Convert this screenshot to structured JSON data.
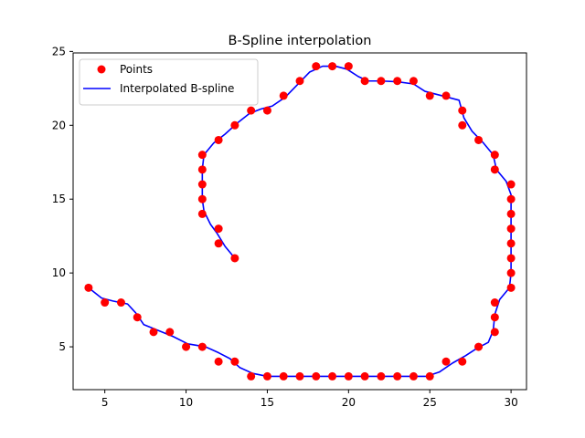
{
  "chart_data": {
    "type": "scatter",
    "title": "B-Spline interpolation",
    "xlabel": "",
    "ylabel": "",
    "xlim": [
      3.05,
      30.95
    ],
    "ylim": [
      2.1,
      24.9
    ],
    "x_ticks": [
      5,
      10,
      15,
      20,
      25,
      30
    ],
    "y_ticks": [
      5,
      10,
      15,
      20,
      25
    ],
    "grid": false,
    "legend_position": "top-left",
    "series": [
      {
        "name": "Points",
        "kind": "scatter",
        "color": "#ff0000",
        "points": [
          [
            13,
            11
          ],
          [
            12,
            12
          ],
          [
            12,
            13
          ],
          [
            11,
            14
          ],
          [
            11,
            15
          ],
          [
            11,
            16
          ],
          [
            11,
            17
          ],
          [
            11,
            18
          ],
          [
            12,
            19
          ],
          [
            13,
            20
          ],
          [
            14,
            21
          ],
          [
            15,
            21
          ],
          [
            16,
            22
          ],
          [
            17,
            23
          ],
          [
            18,
            24
          ],
          [
            19,
            24
          ],
          [
            20,
            24
          ],
          [
            21,
            23
          ],
          [
            22,
            23
          ],
          [
            23,
            23
          ],
          [
            24,
            23
          ],
          [
            25,
            22
          ],
          [
            26,
            22
          ],
          [
            27,
            21
          ],
          [
            27,
            20
          ],
          [
            28,
            19
          ],
          [
            29,
            18
          ],
          [
            29,
            17
          ],
          [
            30,
            16
          ],
          [
            30,
            15
          ],
          [
            30,
            14
          ],
          [
            30,
            13
          ],
          [
            30,
            12
          ],
          [
            30,
            11
          ],
          [
            30,
            10
          ],
          [
            30,
            9
          ],
          [
            29,
            8
          ],
          [
            29,
            7
          ],
          [
            29,
            6
          ],
          [
            28,
            5
          ],
          [
            27,
            4
          ],
          [
            26,
            4
          ],
          [
            25,
            3
          ],
          [
            24,
            3
          ],
          [
            23,
            3
          ],
          [
            22,
            3
          ],
          [
            21,
            3
          ],
          [
            20,
            3
          ],
          [
            19,
            3
          ],
          [
            18,
            3
          ],
          [
            17,
            3
          ],
          [
            16,
            3
          ],
          [
            15,
            3
          ],
          [
            14,
            3
          ],
          [
            13,
            4
          ],
          [
            12,
            4
          ],
          [
            11,
            5
          ],
          [
            10,
            5
          ],
          [
            9,
            6
          ],
          [
            8,
            6
          ],
          [
            7,
            7
          ],
          [
            6,
            8
          ],
          [
            5,
            8
          ],
          [
            4,
            9
          ]
        ]
      },
      {
        "name": "Interpolated B-spline",
        "kind": "line",
        "color": "#0000ff",
        "points": [
          [
            13,
            11
          ],
          [
            12.4,
            11.8
          ],
          [
            11.9,
            12.7
          ],
          [
            11.5,
            13.3
          ],
          [
            11.1,
            14.2
          ],
          [
            11,
            15
          ],
          [
            11,
            16
          ],
          [
            11,
            17
          ],
          [
            11.1,
            18
          ],
          [
            11.7,
            18.8
          ],
          [
            12.4,
            19.4
          ],
          [
            13.1,
            20.1
          ],
          [
            13.9,
            20.8
          ],
          [
            14.6,
            21.1
          ],
          [
            15.3,
            21.3
          ],
          [
            16.1,
            21.9
          ],
          [
            16.9,
            22.8
          ],
          [
            17.6,
            23.6
          ],
          [
            18.4,
            24
          ],
          [
            19.2,
            24
          ],
          [
            19.9,
            23.8
          ],
          [
            20.6,
            23.3
          ],
          [
            21.2,
            23
          ],
          [
            22,
            23
          ],
          [
            23,
            22.95
          ],
          [
            24,
            22.8
          ],
          [
            24.7,
            22.3
          ],
          [
            25.4,
            22.1
          ],
          [
            26.1,
            21.9
          ],
          [
            26.8,
            21.7
          ],
          [
            27.1,
            20.5
          ],
          [
            27.6,
            19.6
          ],
          [
            28.3,
            18.8
          ],
          [
            28.9,
            18
          ],
          [
            29.1,
            17
          ],
          [
            29.7,
            16.2
          ],
          [
            30,
            15.3
          ],
          [
            30,
            14
          ],
          [
            30,
            13
          ],
          [
            30,
            12
          ],
          [
            30,
            11
          ],
          [
            30,
            10
          ],
          [
            29.9,
            9
          ],
          [
            29.3,
            8.2
          ],
          [
            29,
            7.2
          ],
          [
            28.9,
            6.1
          ],
          [
            28.6,
            5.3
          ],
          [
            27.9,
            4.9
          ],
          [
            27.2,
            4.4
          ],
          [
            26.4,
            3.9
          ],
          [
            25.6,
            3.3
          ],
          [
            24.8,
            3
          ],
          [
            24,
            3
          ],
          [
            23,
            3
          ],
          [
            22,
            3
          ],
          [
            21,
            3
          ],
          [
            20,
            3
          ],
          [
            19,
            3
          ],
          [
            18,
            3
          ],
          [
            17,
            3
          ],
          [
            16,
            3
          ],
          [
            15,
            3
          ],
          [
            14.1,
            3.2
          ],
          [
            13.3,
            3.6
          ],
          [
            12.7,
            4.2
          ],
          [
            12,
            4.6
          ],
          [
            11.2,
            5
          ],
          [
            10.1,
            5.2
          ],
          [
            9.2,
            5.7
          ],
          [
            8.3,
            6.1
          ],
          [
            7.4,
            6.5
          ],
          [
            6.9,
            7.3
          ],
          [
            6.4,
            7.9
          ],
          [
            5.5,
            8.1
          ],
          [
            4.8,
            8.3
          ],
          [
            4,
            9
          ]
        ]
      }
    ]
  }
}
